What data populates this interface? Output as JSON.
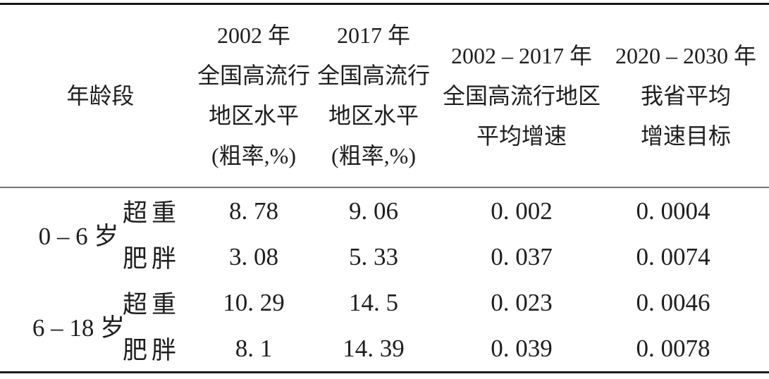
{
  "colors": {
    "rule_strong": "#161616",
    "rule_mid": "#757575",
    "text": "#1e1e1e",
    "background": "#ffffff"
  },
  "table": {
    "header": {
      "age_group": "年龄段",
      "level_2002": [
        "2002 年",
        "全国高流行",
        "地区水平",
        "(粗率,%)"
      ],
      "level_2017": [
        "2017 年",
        "全国高流行",
        "地区水平",
        "(粗率,%)"
      ],
      "growth_2002_2017": [
        "2002 – 2017 年",
        "全国高流行地区",
        "平均增速"
      ],
      "target_2020_2030": [
        "2020 – 2030 年",
        "我省平均",
        "增速目标"
      ]
    },
    "rows": [
      {
        "age_group": "0 – 6 岁",
        "category": "超重",
        "level_2002": "8. 78",
        "level_2017": "9. 06",
        "growth": "0. 002",
        "target": "0. 0004"
      },
      {
        "age_group": "",
        "category": "肥胖",
        "level_2002": "3. 08",
        "level_2017": "5. 33",
        "growth": "0. 037",
        "target": "0. 0074"
      },
      {
        "age_group": "6 – 18 岁",
        "category": "超重",
        "level_2002": "10. 29",
        "level_2017": "14. 5",
        "growth": "0. 023",
        "target": "0. 0046"
      },
      {
        "age_group": "",
        "category": "肥胖",
        "level_2002": "8. 1",
        "level_2017": "14. 39",
        "growth": "0. 039",
        "target": "0. 0078"
      }
    ]
  },
  "chart_data": {
    "type": "table",
    "columns": [
      "年龄段",
      "",
      "2002年全国高流行地区水平(粗率,%)",
      "2017年全国高流行地区水平(粗率,%)",
      "2002–2017年全国高流行地区平均增速",
      "2020–2030年我省平均增速目标"
    ],
    "rows": [
      [
        "0–6岁",
        "超重",
        8.78,
        9.06,
        0.002,
        0.0004
      ],
      [
        "0–6岁",
        "肥胖",
        3.08,
        5.33,
        0.037,
        0.0074
      ],
      [
        "6–18岁",
        "超重",
        10.29,
        14.5,
        0.023,
        0.0046
      ],
      [
        "6–18岁",
        "肥胖",
        8.1,
        14.39,
        0.039,
        0.0078
      ]
    ]
  }
}
